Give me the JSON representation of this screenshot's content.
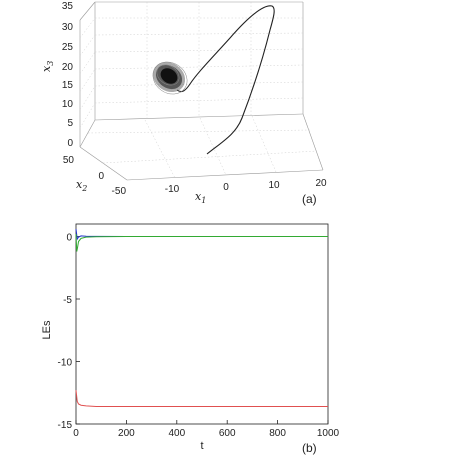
{
  "chart_data": [
    {
      "type": "line",
      "panel_label": "(a)",
      "projection": "3d",
      "x1": {
        "label_base": "x",
        "label_sub": "1",
        "ticks": [
          "-10",
          "0",
          "10",
          "20"
        ]
      },
      "x2": {
        "label_base": "x",
        "label_sub": "2",
        "ticks": [
          "50",
          "0",
          "-50"
        ]
      },
      "x3": {
        "label_base": "x",
        "label_sub": "3",
        "ticks": [
          "35",
          "30",
          "25",
          "20",
          "15",
          "10",
          "5",
          "0"
        ]
      },
      "grid": true,
      "series": [
        {
          "color": "#222222",
          "description_points": [
            {
              "x1": 6,
              "x3": 0.5
            },
            {
              "x1": 12,
              "x3": 6
            },
            {
              "x1": 16,
              "x3": 14
            },
            {
              "x1": 18,
              "x3": 24
            },
            {
              "x1": 17,
              "x3": 34
            },
            {
              "x1": 8,
              "x3": 30
            },
            {
              "x1": -2,
              "x3": 20
            },
            {
              "x1": -8,
              "x3": 14
            }
          ],
          "attractor_center": {
            "x1": -12,
            "x3": 16
          }
        }
      ]
    },
    {
      "type": "line",
      "panel_label": "(b)",
      "xlabel": "t",
      "ylabel": "LEs",
      "xlim": [
        0,
        1000
      ],
      "ylim": [
        -15,
        1
      ],
      "x_ticks": [
        "0",
        "200",
        "400",
        "600",
        "800",
        "1000"
      ],
      "y_ticks": [
        "0",
        "-5",
        "-10",
        "-15"
      ],
      "series": [
        {
          "color": "#2233cc",
          "x": [
            0,
            5,
            10,
            20,
            40,
            80,
            200,
            400,
            600,
            800,
            1000
          ],
          "values": [
            0.6,
            -0.2,
            -0.05,
            0.05,
            0.02,
            0.01,
            0.0,
            0.0,
            0.0,
            0.0,
            0.0
          ]
        },
        {
          "color": "#33aa33",
          "x": [
            0,
            3,
            6,
            10,
            20,
            40,
            80,
            200,
            400,
            600,
            800,
            1000
          ],
          "values": [
            0.2,
            -1.2,
            -0.9,
            -0.4,
            -0.15,
            -0.05,
            -0.02,
            0.0,
            0.0,
            0.0,
            0.0,
            0.0
          ]
        },
        {
          "color": "#e05050",
          "x": [
            0,
            5,
            10,
            20,
            40,
            80,
            200,
            400,
            600,
            800,
            1000
          ],
          "values": [
            -12.3,
            -13.2,
            -13.4,
            -13.5,
            -13.55,
            -13.6,
            -13.6,
            -13.6,
            -13.6,
            -13.6,
            -13.6
          ]
        }
      ]
    }
  ]
}
